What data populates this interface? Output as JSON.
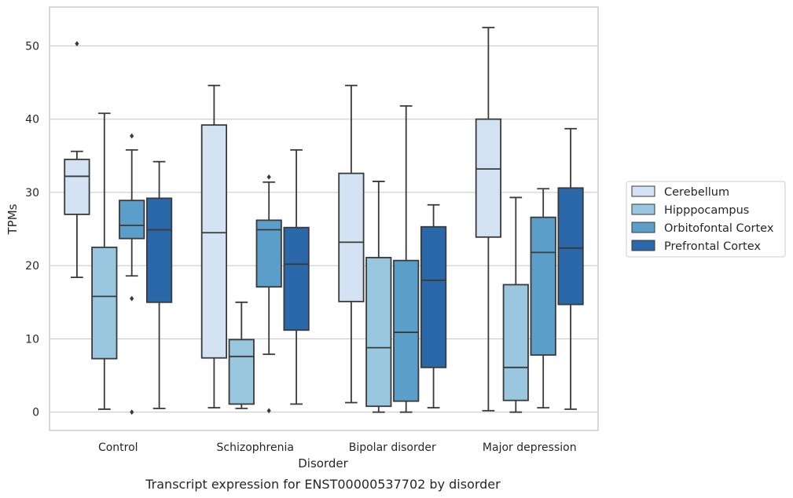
{
  "chart_data": {
    "type": "box",
    "title": "",
    "caption": "Transcript expression for ENST00000537702 by disorder",
    "xlabel": "Disorder",
    "ylabel": "TPMs",
    "ylim": [
      -2.5,
      55.3
    ],
    "yticks": [
      0,
      10,
      20,
      30,
      40,
      50
    ],
    "grid": "horizontal",
    "legend_position": "right",
    "categories": [
      "Control",
      "Schizophrenia",
      "Bipolar disorder",
      "Major depression"
    ],
    "series": [
      {
        "name": "Cerebellum",
        "color": "#d3e3f3",
        "boxes": [
          {
            "whisker_low": 18.4,
            "q1": 27.0,
            "median": 32.2,
            "q3": 34.5,
            "whisker_high": 35.6,
            "outliers": [
              50.3
            ]
          },
          {
            "whisker_low": 0.6,
            "q1": 7.4,
            "median": 24.5,
            "q3": 39.2,
            "whisker_high": 44.6,
            "outliers": []
          },
          {
            "whisker_low": 1.3,
            "q1": 15.1,
            "median": 23.2,
            "q3": 32.6,
            "whisker_high": 44.6,
            "outliers": []
          },
          {
            "whisker_low": 0.2,
            "q1": 23.9,
            "median": 33.2,
            "q3": 40.0,
            "whisker_high": 52.5,
            "outliers": []
          }
        ]
      },
      {
        "name": "Hipppocampus",
        "color": "#9ac7e0",
        "boxes": [
          {
            "whisker_low": 0.4,
            "q1": 7.3,
            "median": 15.8,
            "q3": 22.5,
            "whisker_high": 40.8,
            "outliers": []
          },
          {
            "whisker_low": 0.5,
            "q1": 1.1,
            "median": 7.6,
            "q3": 9.9,
            "whisker_high": 15.0,
            "outliers": []
          },
          {
            "whisker_low": 0.0,
            "q1": 0.8,
            "median": 8.8,
            "q3": 21.1,
            "whisker_high": 31.5,
            "outliers": []
          },
          {
            "whisker_low": 0.0,
            "q1": 1.6,
            "median": 6.1,
            "q3": 17.4,
            "whisker_high": 29.3,
            "outliers": []
          }
        ]
      },
      {
        "name": "Orbitofontal Cortex",
        "color": "#5b9ec9",
        "boxes": [
          {
            "whisker_low": 18.6,
            "q1": 23.7,
            "median": 25.5,
            "q3": 28.9,
            "whisker_high": 35.8,
            "outliers": [
              37.7,
              15.5,
              0.0
            ]
          },
          {
            "whisker_low": 7.9,
            "q1": 17.1,
            "median": 24.9,
            "q3": 26.2,
            "whisker_high": 31.4,
            "outliers": [
              32.1,
              0.2
            ]
          },
          {
            "whisker_low": 0.0,
            "q1": 1.5,
            "median": 10.9,
            "q3": 20.7,
            "whisker_high": 41.8,
            "outliers": []
          },
          {
            "whisker_low": 0.6,
            "q1": 7.8,
            "median": 21.8,
            "q3": 26.6,
            "whisker_high": 30.5,
            "outliers": []
          }
        ]
      },
      {
        "name": "Prefrontal Cortex",
        "color": "#2a68a9",
        "boxes": [
          {
            "whisker_low": 0.5,
            "q1": 15.0,
            "median": 24.9,
            "q3": 29.2,
            "whisker_high": 34.2,
            "outliers": []
          },
          {
            "whisker_low": 1.1,
            "q1": 11.2,
            "median": 20.2,
            "q3": 25.2,
            "whisker_high": 35.8,
            "outliers": []
          },
          {
            "whisker_low": 0.6,
            "q1": 6.1,
            "median": 18.0,
            "q3": 25.3,
            "whisker_high": 28.3,
            "outliers": []
          },
          {
            "whisker_low": 0.4,
            "q1": 14.7,
            "median": 22.4,
            "q3": 30.6,
            "whisker_high": 38.7,
            "outliers": []
          }
        ]
      }
    ]
  }
}
